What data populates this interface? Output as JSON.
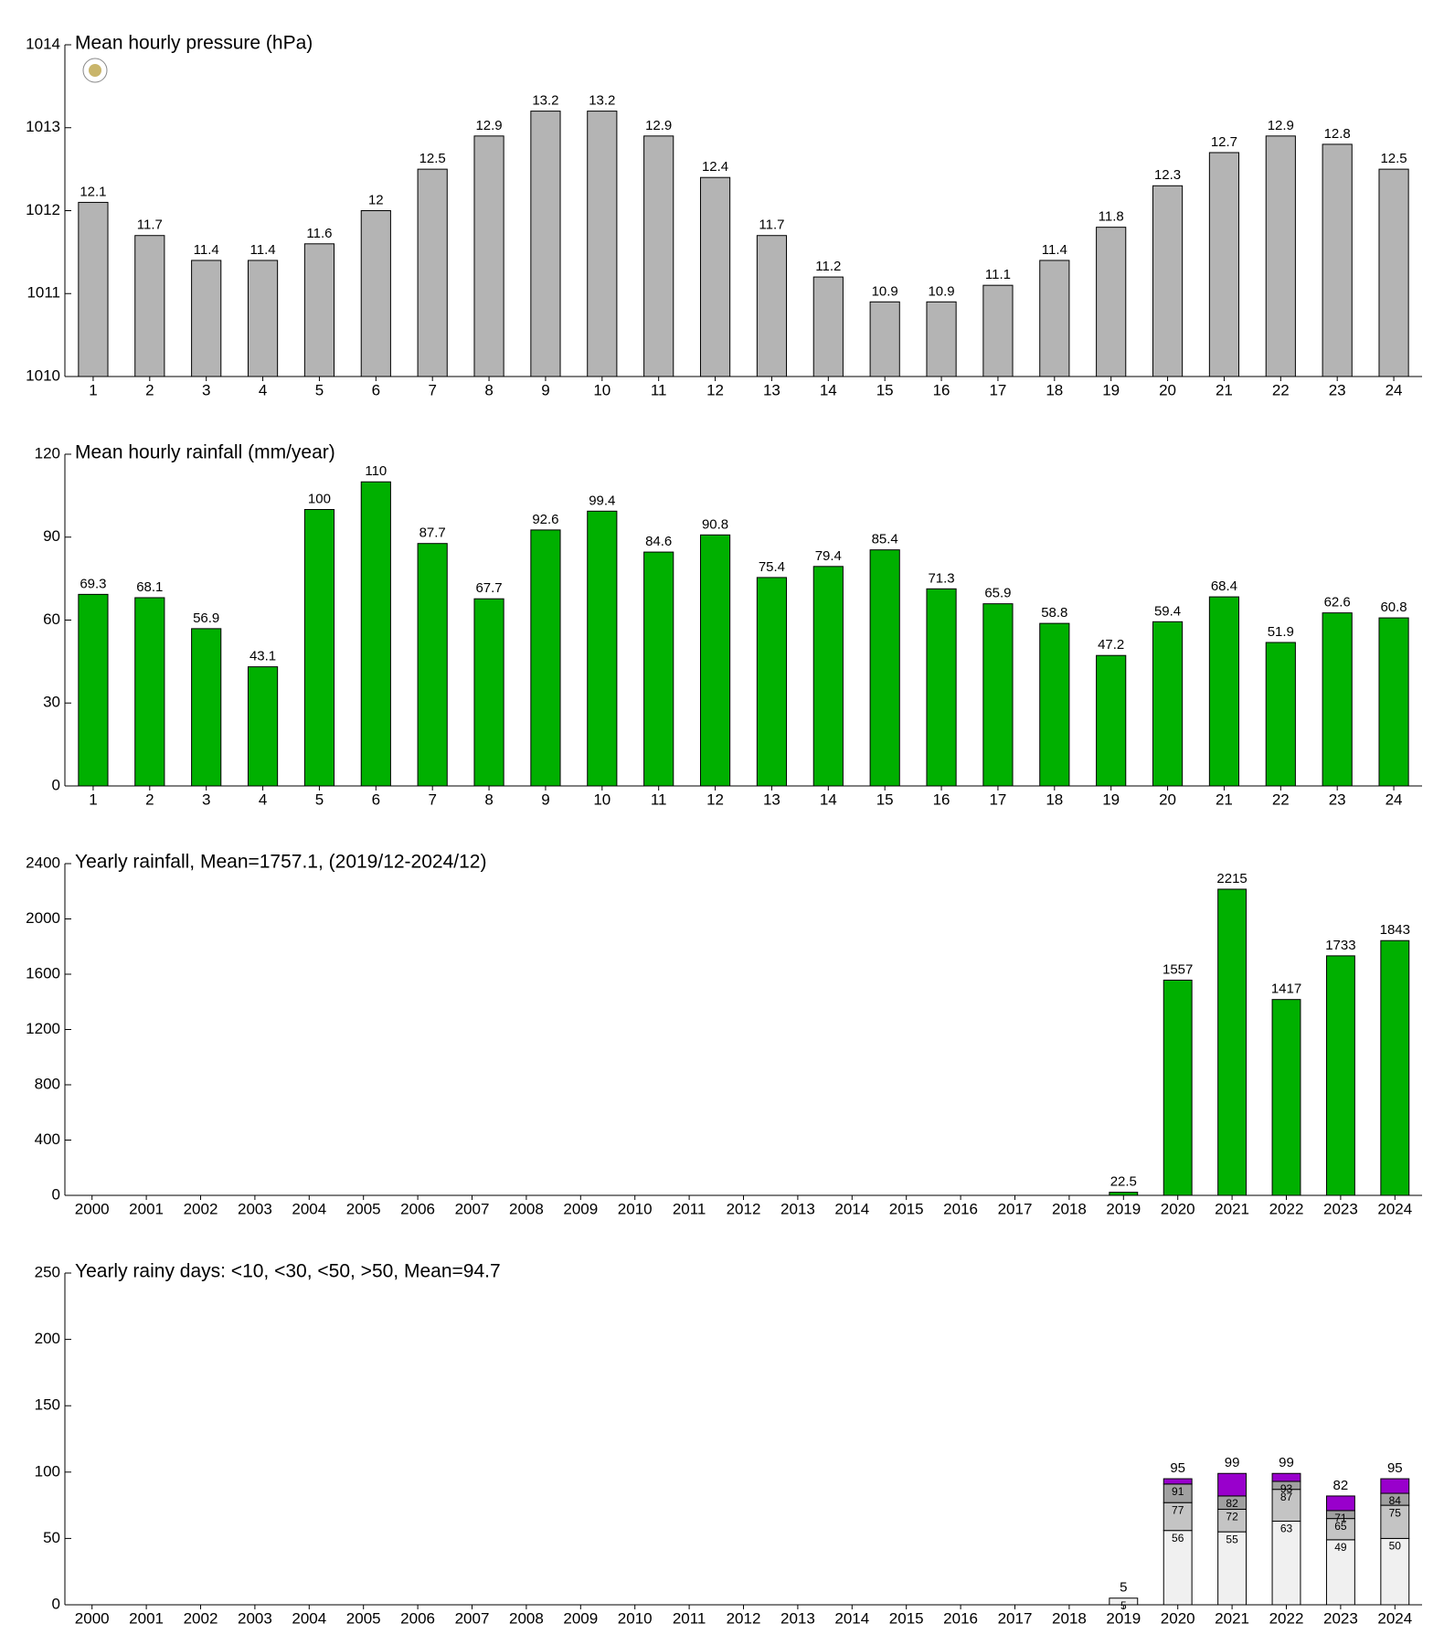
{
  "chart_data": [
    {
      "type": "bar",
      "title": "Mean hourly pressure (hPa)",
      "color": "#b4b4b4",
      "categories": [
        1,
        2,
        3,
        4,
        5,
        6,
        7,
        8,
        9,
        10,
        11,
        12,
        13,
        14,
        15,
        16,
        17,
        18,
        19,
        20,
        21,
        22,
        23,
        24
      ],
      "values": [
        1012.1,
        1011.7,
        1011.4,
        1011.4,
        1011.6,
        1012,
        1012.5,
        1012.9,
        1013.2,
        1013.2,
        1012.9,
        1012.4,
        1011.7,
        1011.2,
        1010.9,
        1010.9,
        1011.1,
        1011.4,
        1011.8,
        1012.3,
        1012.7,
        1012.9,
        1012.8,
        1012.5
      ],
      "value_labels": [
        "12.1",
        "11.7",
        "11.4",
        "11.4",
        "11.6",
        "12",
        "12.5",
        "12.9",
        "13.2",
        "13.2",
        "12.9",
        "12.4",
        "11.7",
        "11.2",
        "10.9",
        "10.9",
        "11.1",
        "11.4",
        "11.8",
        "12.3",
        "12.7",
        "12.9",
        "12.8",
        "12.5"
      ],
      "ylim": [
        1010,
        1014
      ],
      "yticks": [
        1010,
        1011,
        1012,
        1013,
        1014
      ]
    },
    {
      "type": "bar",
      "title": "Mean hourly rainfall (mm/year)",
      "color": "#00b000",
      "categories": [
        1,
        2,
        3,
        4,
        5,
        6,
        7,
        8,
        9,
        10,
        11,
        12,
        13,
        14,
        15,
        16,
        17,
        18,
        19,
        20,
        21,
        22,
        23,
        24
      ],
      "values": [
        69.3,
        68.1,
        56.9,
        43.1,
        100,
        110,
        87.7,
        67.7,
        92.6,
        99.4,
        84.6,
        90.8,
        75.4,
        79.4,
        85.4,
        71.3,
        65.9,
        58.8,
        47.2,
        59.4,
        68.4,
        51.9,
        62.6,
        60.8
      ],
      "ylim": [
        0,
        120
      ],
      "yticks": [
        0,
        30,
        60,
        90,
        120
      ]
    },
    {
      "type": "bar",
      "title": "Yearly rainfall, Mean=1757.1, (2019/12-2024/12)",
      "color": "#00b000",
      "categories": [
        2000,
        2001,
        2002,
        2003,
        2004,
        2005,
        2006,
        2007,
        2008,
        2009,
        2010,
        2011,
        2012,
        2013,
        2014,
        2015,
        2016,
        2017,
        2018,
        2019,
        2020,
        2021,
        2022,
        2023,
        2024
      ],
      "values": [
        null,
        null,
        null,
        null,
        null,
        null,
        null,
        null,
        null,
        null,
        null,
        null,
        null,
        null,
        null,
        null,
        null,
        null,
        null,
        22.5,
        1557,
        2215,
        1417,
        1733,
        1843
      ],
      "ylim": [
        0,
        2400
      ],
      "yticks": [
        0,
        400,
        800,
        1200,
        1600,
        2000,
        2400
      ]
    },
    {
      "type": "stacked_bar",
      "title": "Yearly rainy days: <10, <30, <50, >50, Mean=94.7",
      "categories": [
        2000,
        2001,
        2002,
        2003,
        2004,
        2005,
        2006,
        2007,
        2008,
        2009,
        2010,
        2011,
        2012,
        2013,
        2014,
        2015,
        2016,
        2017,
        2018,
        2019,
        2020,
        2021,
        2022,
        2023,
        2024
      ],
      "series": [
        {
          "color": "#f0f0f0",
          "values": [
            null,
            null,
            null,
            null,
            null,
            null,
            null,
            null,
            null,
            null,
            null,
            null,
            null,
            null,
            null,
            null,
            null,
            null,
            null,
            5,
            56,
            55,
            63,
            49,
            50
          ]
        },
        {
          "color": "#c4c4c4",
          "values": [
            null,
            null,
            null,
            null,
            null,
            null,
            null,
            null,
            null,
            null,
            null,
            null,
            null,
            null,
            null,
            null,
            null,
            null,
            null,
            null,
            21,
            17,
            24,
            16,
            25
          ],
          "levels": [
            null,
            null,
            null,
            null,
            null,
            null,
            null,
            null,
            null,
            null,
            null,
            null,
            null,
            null,
            null,
            null,
            null,
            null,
            null,
            null,
            77,
            72,
            87,
            65,
            75
          ]
        },
        {
          "color": "#a0a0a0",
          "values": [
            null,
            null,
            null,
            null,
            null,
            null,
            null,
            null,
            null,
            null,
            null,
            null,
            null,
            null,
            null,
            null,
            null,
            null,
            null,
            null,
            14,
            10,
            6,
            6,
            9
          ],
          "levels": [
            null,
            null,
            null,
            null,
            null,
            null,
            null,
            null,
            null,
            null,
            null,
            null,
            null,
            null,
            null,
            null,
            null,
            null,
            null,
            null,
            91,
            82,
            93,
            71,
            84
          ]
        },
        {
          "color": "#9900cc",
          "values": [
            null,
            null,
            null,
            null,
            null,
            null,
            null,
            null,
            null,
            null,
            null,
            null,
            null,
            null,
            null,
            null,
            null,
            null,
            null,
            null,
            4,
            17,
            6,
            11,
            11
          ]
        }
      ],
      "totals": [
        null,
        null,
        null,
        null,
        null,
        null,
        null,
        null,
        null,
        null,
        null,
        null,
        null,
        null,
        null,
        null,
        null,
        null,
        null,
        5,
        95,
        99,
        99,
        82,
        95
      ],
      "ylim": [
        0,
        250
      ],
      "yticks": [
        0,
        50,
        100,
        150,
        200,
        250
      ]
    }
  ]
}
